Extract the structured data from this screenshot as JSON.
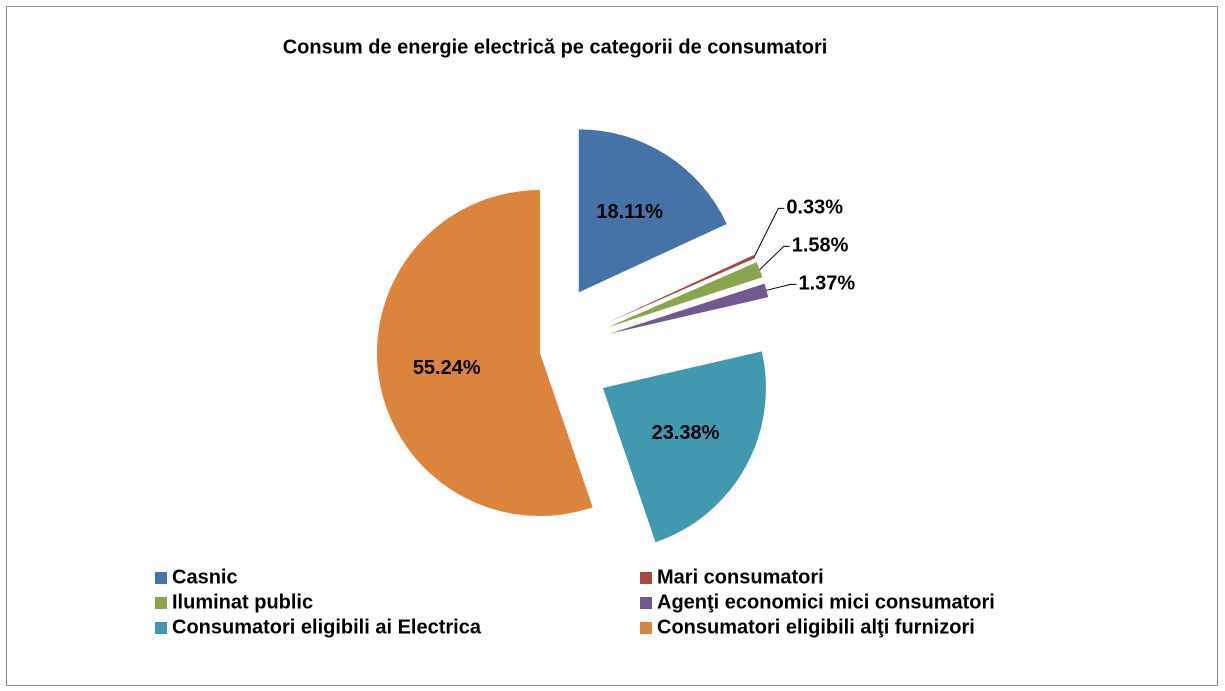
{
  "chart_data": {
    "type": "pie",
    "title": "Consum de energie electrică pe categorii de consumatori",
    "categories": [
      "Casnic",
      "Mari consumatori",
      "Iluminat public",
      "Agenţi economici mici consumatori",
      "Consumatori eligibili ai Electrica",
      "Consumatori eligibili alţi furnizori"
    ],
    "values": [
      18.11,
      0.33,
      1.58,
      1.37,
      23.38,
      55.24
    ],
    "value_labels": [
      "18.11%",
      "0.33%",
      "1.58%",
      "1.37%",
      "23.38%",
      "55.24%"
    ],
    "colors": [
      "#4572a7",
      "#aa4643",
      "#89a54e",
      "#71588f",
      "#4198af",
      "#db843d"
    ],
    "legend": "bottom"
  }
}
